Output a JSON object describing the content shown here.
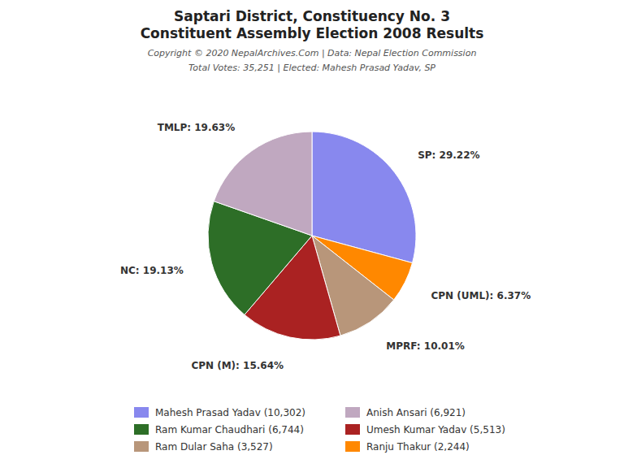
{
  "chart_data": {
    "type": "pie",
    "title": [
      "Saptari District, Constituency No. 3",
      "Constituent Assembly Election 2008 Results"
    ],
    "annotations": [
      "Copyright © 2020 NepalArchives.Com | Data: Nepal Election Commission",
      "Total Votes: 35,251 | Elected: Mahesh Prasad Yadav, SP"
    ],
    "categories": [
      "SP",
      "CPN (UML)",
      "MPRF",
      "CPN (M)",
      "NC",
      "TMLP"
    ],
    "values": [
      29.22,
      6.37,
      10.01,
      15.64,
      19.13,
      19.63
    ],
    "value_labels": [
      "29.22%",
      "6.37%",
      "10.01%",
      "15.64%",
      "19.13%",
      "19.63%"
    ],
    "data_labels": true,
    "colors": [
      "#8888ee",
      "#ff8800",
      "#b8967a",
      "#aa2222",
      "#2d6e27",
      "#c0a8c0"
    ],
    "legend": "bottom",
    "legend_entries": [
      {
        "label": "Mahesh Prasad Yadav (10,302)",
        "color": "#8888ee"
      },
      {
        "label": "Ram Kumar Chaudhari (6,744)",
        "color": "#2d6e27"
      },
      {
        "label": "Ram Dular Saha (3,527)",
        "color": "#b8967a"
      },
      {
        "label": "Anish Ansari (6,921)",
        "color": "#c0a8c0"
      },
      {
        "label": "Umesh Kumar Yadav (5,513)",
        "color": "#aa2222"
      },
      {
        "label": "Ranju Thakur (2,244)",
        "color": "#ff8800"
      }
    ]
  }
}
